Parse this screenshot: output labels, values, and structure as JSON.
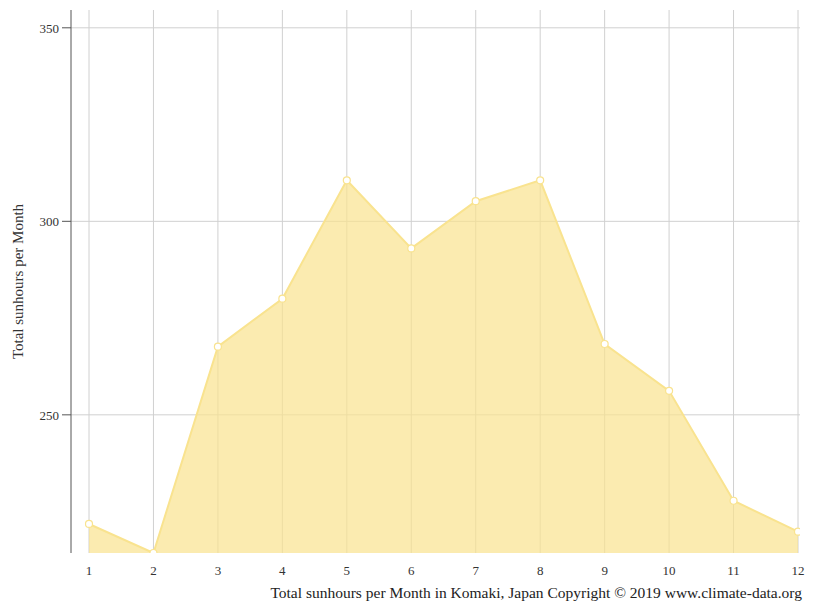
{
  "chart_data": {
    "type": "area",
    "title": "Total sunhours per Month in Komaki, Japan Copyright © 2019 www.climate-data.org",
    "y_label": "Total sunhours per Month",
    "x": [
      1,
      2,
      3,
      4,
      5,
      6,
      7,
      8,
      9,
      10,
      11,
      12
    ],
    "values": [
      221.8,
      214.3,
      267.6,
      280.0,
      310.6,
      293.0,
      305.2,
      310.6,
      268.3,
      256.2,
      227.8,
      219.8
    ],
    "color": "#f9e38f",
    "marker": "circle",
    "xlim": [
      1,
      12
    ],
    "xticks": [
      1,
      2,
      3,
      4,
      5,
      6,
      7,
      8,
      9,
      10,
      11,
      12
    ],
    "ylim": [
      214.3,
      354.6
    ],
    "yticks": [
      250,
      300,
      350
    ],
    "grid": true
  }
}
